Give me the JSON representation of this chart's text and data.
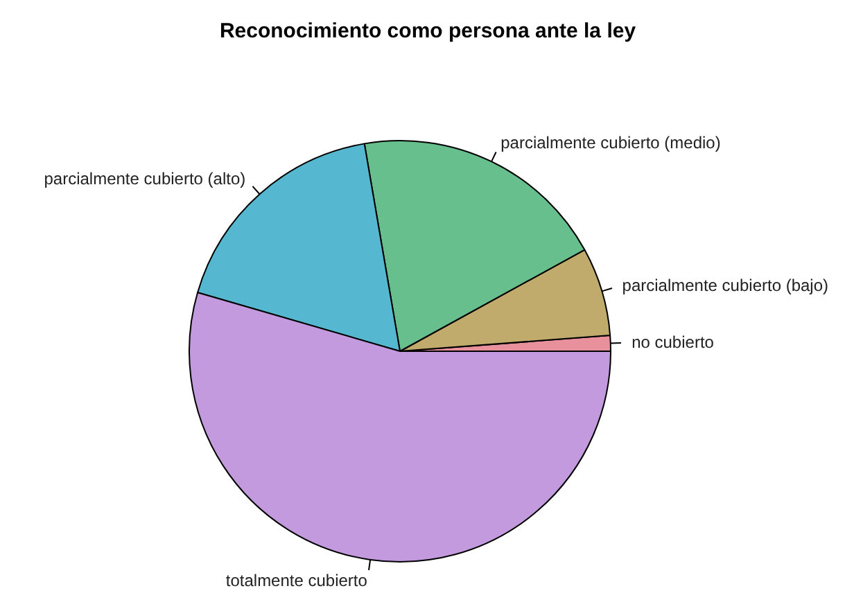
{
  "chart_data": {
    "type": "pie",
    "title": "Reconocimiento como persona ante la ley",
    "categories": [
      "no cubierto",
      "parcialmente cubierto (bajo)",
      "parcialmente cubierto (medio)",
      "parcialmente cubierto (alto)",
      "totalmente cubierto"
    ],
    "values": [
      1.2,
      6.8,
      19.7,
      17.8,
      54.5
    ],
    "colors": [
      "#e8909b",
      "#c0aa6c",
      "#66bf8c",
      "#55b7d0",
      "#c39ade"
    ]
  }
}
